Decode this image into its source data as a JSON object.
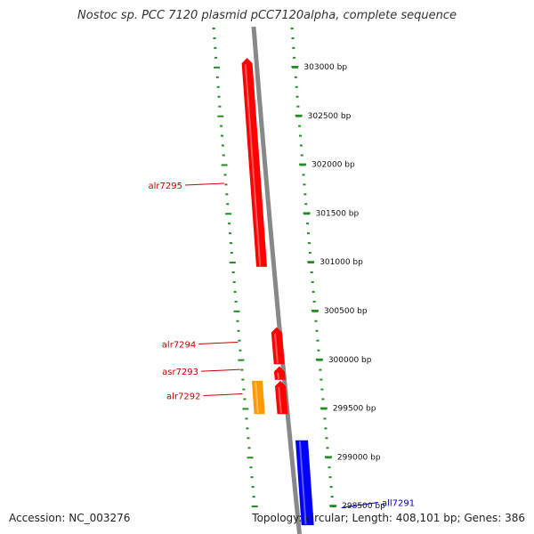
{
  "title": "Nostoc sp. PCC 7120 plasmid pCC7120alpha, complete sequence",
  "footer": {
    "accession": "Accession: NC_003276",
    "summary": "Topology: circular; Length: 408,101 bp; Genes: 386"
  },
  "colors": {
    "backbone": "#888888",
    "ruler": "#228B22",
    "forward_gene": "#ff0000",
    "reverse_gene": "#0000ff",
    "other_gene": "#ff9900",
    "label_forward": "#cc0000",
    "label_reverse": "#0000cc"
  },
  "ticks": [
    {
      "label": "303000 bp",
      "bp": 303000
    },
    {
      "label": "302500 bp",
      "bp": 302500
    },
    {
      "label": "302000 bp",
      "bp": 302000
    },
    {
      "label": "301500 bp",
      "bp": 301500
    },
    {
      "label": "301000 bp",
      "bp": 301000
    },
    {
      "label": "300500 bp",
      "bp": 300500
    },
    {
      "label": "300000 bp",
      "bp": 300000
    },
    {
      "label": "299500 bp",
      "bp": 299500
    },
    {
      "label": "299000 bp",
      "bp": 299000
    },
    {
      "label": "298500 bp",
      "bp": 298500
    }
  ],
  "genes": [
    {
      "name": "alr7295",
      "start": 300950,
      "end": 303090,
      "strand": "forward",
      "type": "forward",
      "labeled": true
    },
    {
      "name": "alr7294",
      "start": 299950,
      "end": 300330,
      "strand": "forward",
      "type": "forward",
      "labeled": true
    },
    {
      "name": "asr7293",
      "start": 299790,
      "end": 299930,
      "strand": "forward",
      "type": "forward",
      "labeled": true
    },
    {
      "name": "alr7292",
      "start": 299440,
      "end": 299780,
      "strand": "forward",
      "type": "forward",
      "labeled": true
    },
    {
      "name": "",
      "start": 299440,
      "end": 299780,
      "strand": "forward",
      "type": "other",
      "labeled": false
    },
    {
      "name": "all7291",
      "start": 298300,
      "end": 299170,
      "strand": "reverse",
      "type": "reverse",
      "labeled": true
    }
  ]
}
